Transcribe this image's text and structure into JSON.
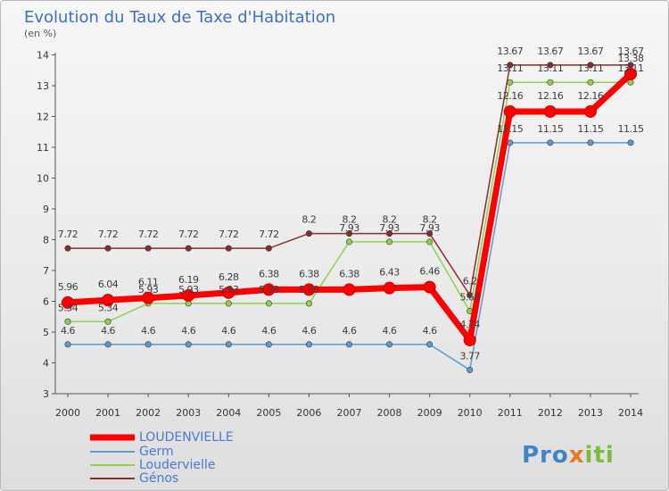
{
  "chart_data": {
    "type": "line",
    "title": "Evolution du Taux de Taxe d'Habitation",
    "subtitle": "(en %)",
    "x": [
      "2000",
      "2001",
      "2002",
      "2003",
      "2004",
      "2005",
      "2006",
      "2007",
      "2008",
      "2009",
      "2010",
      "2011",
      "2012",
      "2013",
      "2014"
    ],
    "ylim": [
      3,
      14
    ],
    "yticks": [
      3,
      4,
      5,
      6,
      7,
      8,
      9,
      10,
      11,
      12,
      13,
      14
    ],
    "grid": false,
    "legend_position": "bottom-left",
    "series": [
      {
        "name": "LOUDENVIELLE",
        "color": "#ff0000",
        "values": [
          5.96,
          6.04,
          6.11,
          6.19,
          6.28,
          6.38,
          6.38,
          6.38,
          6.43,
          6.46,
          4.74,
          12.16,
          12.16,
          12.16,
          13.38
        ],
        "labels": [
          "5.96",
          "6.04",
          "6.11",
          "6.19",
          "6.28",
          "6.38",
          "6.38",
          "6.38",
          "6.43",
          "6.46",
          "4.74",
          "12.16",
          "12.16",
          "12.16",
          "13.38"
        ]
      },
      {
        "name": "Germ",
        "color": "#5b9bd5",
        "values": [
          4.6,
          4.6,
          4.6,
          4.6,
          4.6,
          4.6,
          4.6,
          4.6,
          4.6,
          4.6,
          3.77,
          11.15,
          11.15,
          11.15,
          11.15
        ],
        "labels": [
          "4.6",
          "4.6",
          "4.6",
          "4.6",
          "4.6",
          "4.6",
          "4.6",
          "4.6",
          "4.6",
          "4.6",
          "3.77",
          "11.15",
          "11.15",
          "11.15",
          "11.15"
        ]
      },
      {
        "name": "Loudervielle",
        "color": "#8fd14f",
        "values": [
          5.34,
          5.34,
          5.93,
          5.93,
          5.93,
          5.93,
          5.93,
          7.93,
          7.93,
          7.93,
          5.68,
          13.11,
          13.11,
          13.11,
          13.11
        ],
        "labels": [
          "5.34",
          "5.34",
          "5.93",
          "5.93",
          "5.93",
          "5.93",
          "5.93",
          "7.93",
          "7.93",
          "7.93",
          "5.68",
          "13.11",
          "13.11",
          "13.11",
          "13.11"
        ]
      },
      {
        "name": "Génos",
        "color": "#8b2c2c",
        "values": [
          7.72,
          7.72,
          7.72,
          7.72,
          7.72,
          7.72,
          8.2,
          8.2,
          8.2,
          8.2,
          6.2,
          13.67,
          13.67,
          13.67,
          13.67
        ],
        "labels": [
          "7.72",
          "7.72",
          "7.72",
          "7.72",
          "7.72",
          "7.72",
          "8.2",
          "8.2",
          "8.2",
          "8.2",
          "6.2",
          "13.67",
          "13.67",
          "13.67",
          "13.67"
        ]
      }
    ]
  },
  "logo": {
    "text": "Proxiti"
  }
}
